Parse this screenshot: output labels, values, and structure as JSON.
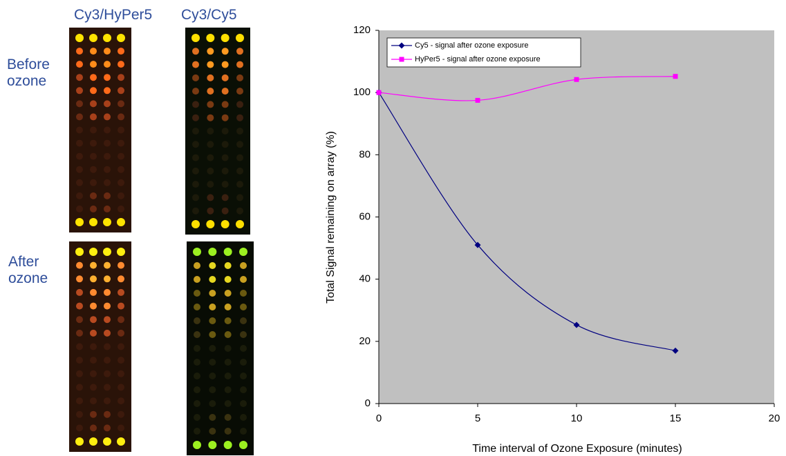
{
  "panels": {
    "columns": [
      "Cy3/HyPer5",
      "Cy3/Cy5"
    ],
    "rows": [
      "Before ozone",
      "After ozone"
    ]
  },
  "chart_data": {
    "type": "line",
    "x_label": "Time interval of Ozone Exposure (minutes)",
    "y_label": "Total Signal remaining on array (%)",
    "x": [
      0,
      5,
      10,
      15
    ],
    "series": [
      {
        "name": "Cy5 - signal after ozone exposure",
        "color": "#000080",
        "marker": "diamond",
        "values": [
          100,
          51,
          25.3,
          17
        ]
      },
      {
        "name": "HyPer5 - signal after ozone exposure",
        "color": "#ff00ff",
        "marker": "square",
        "values": [
          100,
          97.5,
          104.2,
          105.2
        ]
      }
    ],
    "xlim": [
      0,
      20
    ],
    "xticks": [
      0,
      5,
      10,
      15,
      20
    ],
    "ylim": [
      0,
      120
    ],
    "yticks": [
      0,
      20,
      40,
      60,
      80,
      100,
      120
    ],
    "legend": "upper-left",
    "plot_background": "#c0c0c0"
  }
}
